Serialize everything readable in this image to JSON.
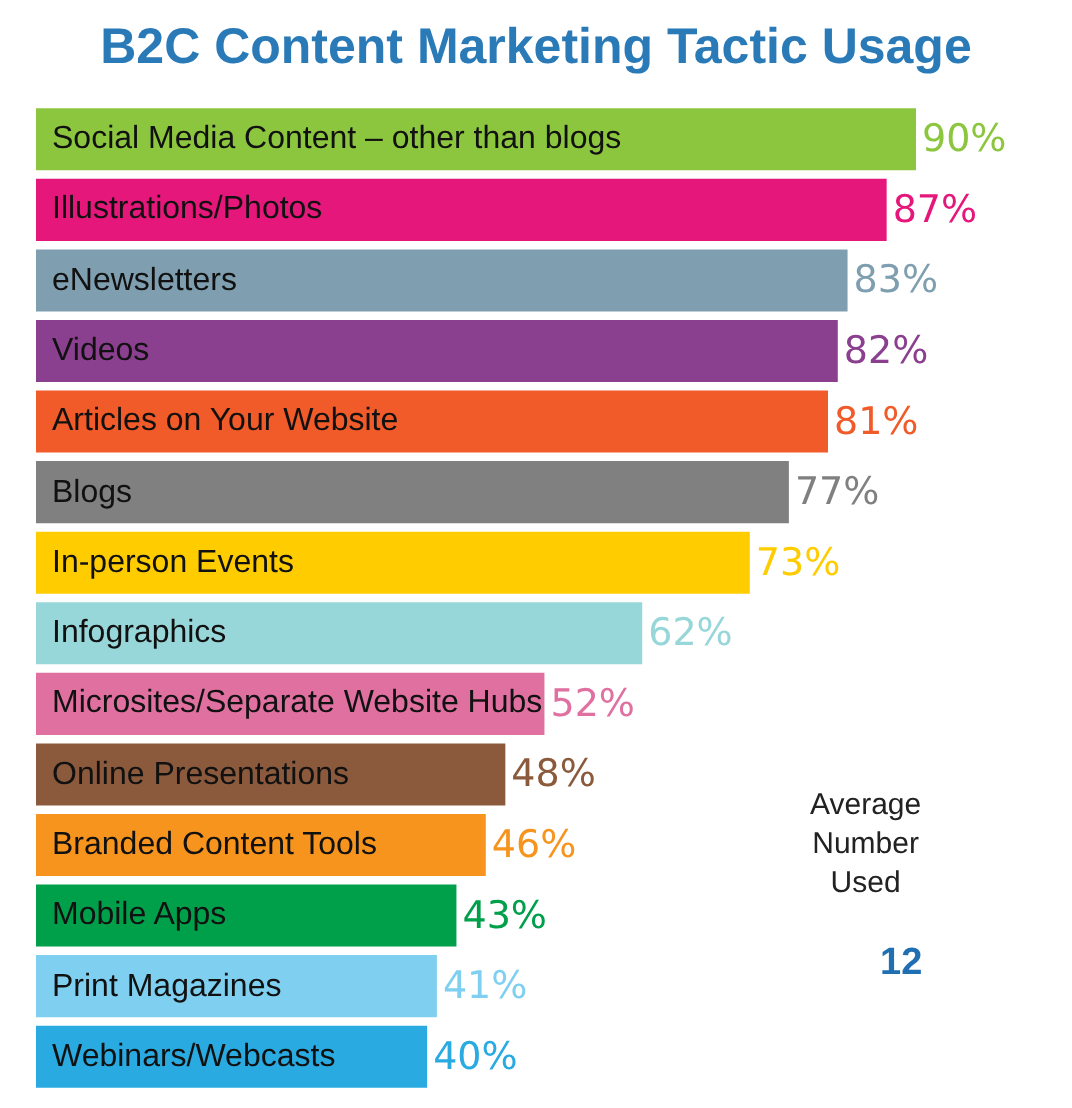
{
  "chart_data": {
    "type": "bar",
    "orientation": "horizontal",
    "title": "B2C Content Marketing Tactic Usage",
    "categories": [
      "Social Media Content – other than blogs",
      "Illustrations/Photos",
      "eNewsletters",
      "Videos",
      "Articles on Your Website",
      "Blogs",
      "In-person Events",
      "Infographics",
      "Microsites/Separate Website Hubs",
      "Online Presentations",
      "Branded Content Tools",
      "Mobile Apps",
      "Print Magazines",
      "Webinars/Webcasts"
    ],
    "values": [
      90,
      87,
      83,
      82,
      81,
      77,
      73,
      62,
      52,
      48,
      46,
      43,
      41,
      40
    ],
    "value_labels": [
      "90%",
      "87%",
      "83%",
      "82%",
      "81%",
      "77%",
      "73%",
      "62%",
      "52%",
      "48%",
      "46%",
      "43%",
      "41%",
      "40%"
    ],
    "colors": [
      "#8cc63f",
      "#e6177b",
      "#7f9fb0",
      "#8b3f8f",
      "#f15a29",
      "#808080",
      "#ffcc00",
      "#98d7d9",
      "#e070a0",
      "#8b5a3c",
      "#f7941d",
      "#00a04b",
      "#7fd0f0",
      "#29abe2"
    ],
    "annotations": [
      "Average Number Used",
      "12"
    ]
  }
}
